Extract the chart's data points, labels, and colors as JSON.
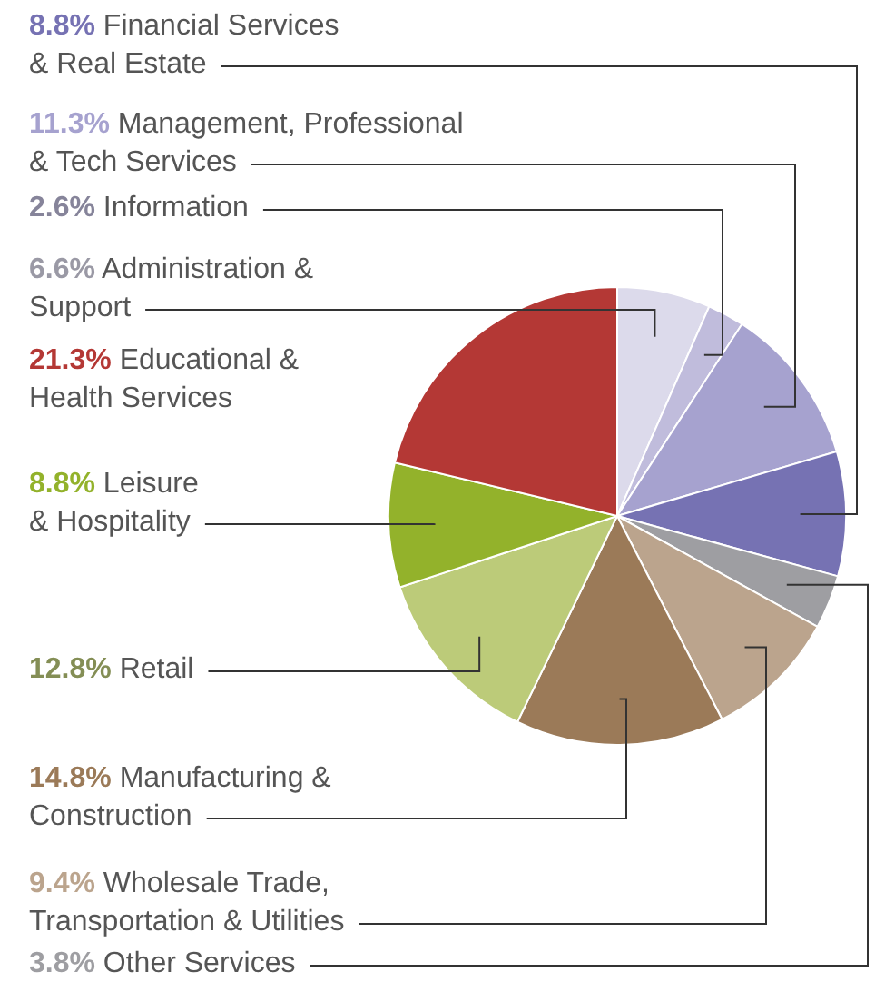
{
  "chart_data": {
    "type": "pie",
    "categories": [
      "Administration & Support",
      "Information",
      "Management, Professional & Tech Services",
      "Financial Services & Real Estate",
      "Other Services",
      "Wholesale Trade, Transportation & Utilities",
      "Manufacturing & Construction",
      "Retail",
      "Leisure & Hospitality",
      "Educational & Health Services"
    ],
    "values": [
      6.6,
      2.6,
      11.3,
      8.8,
      3.8,
      9.4,
      14.8,
      12.8,
      8.8,
      21.3
    ],
    "value_labels": [
      "6.6%",
      "2.6%",
      "11.3%",
      "8.8%",
      "3.8%",
      "9.4%",
      "14.8%",
      "12.8%",
      "8.8%",
      "21.3%"
    ],
    "colors": [
      "#dcdaeb",
      "#c0bcdc",
      "#a6a2cf",
      "#7672b3",
      "#9e9ea2",
      "#bba48d",
      "#9b7a58",
      "#bccb79",
      "#93b22b",
      "#b43835"
    ]
  }
}
